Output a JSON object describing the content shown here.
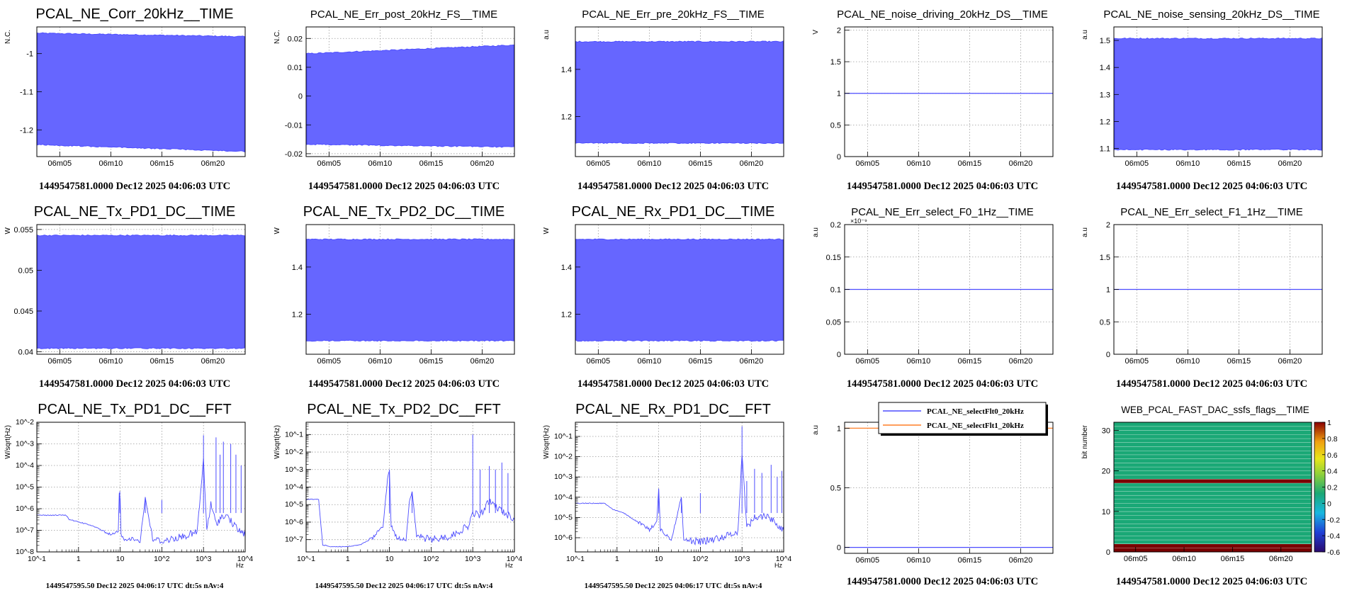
{
  "colors": {
    "trace": "#4d4dff",
    "fill": "#6666ff",
    "orange": "#ff7f27",
    "frame": "#000000",
    "grid": "#9a9a9a"
  },
  "time_ticks": [
    "06m05",
    "06m10",
    "06m15",
    "06m20"
  ],
  "freq_ticks": [
    "10^-1",
    "1",
    "10",
    "10^2",
    "10^3",
    "10^4"
  ],
  "freq_unit": "Hz",
  "stamp_time": "1449547581.0000 Dec12 2025 04:06:03 UTC",
  "stamp_fft": "1449547595.50 Dec12 2025 04:06:17 UTC dt:5s nAv:4",
  "chart_data": [
    {
      "type": "area",
      "title": "PCAL_NE_Corr_20kHz__TIME",
      "ylabel": "N.C.",
      "ylim": [
        -1.27,
        -0.93
      ],
      "yticks": [
        "-1",
        "-1.1",
        "-1.2"
      ],
      "yvals": [
        -1,
        -1.1,
        -1.2
      ],
      "band": {
        "upper": [
          -0.948,
          -0.957
        ],
        "lower": [
          -1.237,
          -1.255
        ]
      }
    },
    {
      "type": "area",
      "title": "PCAL_NE_Err_post_20kHz_FS__TIME",
      "ylabel": "N.C.",
      "ylim": [
        -0.021,
        0.024
      ],
      "yticks": [
        "0.02",
        "0.01",
        "0",
        "-0.01",
        "-0.02"
      ],
      "yvals": [
        0.02,
        0.01,
        0,
        -0.01,
        -0.02
      ],
      "band": {
        "upper": [
          0.0145,
          0.0175
        ],
        "lower": [
          -0.0165,
          -0.0175
        ]
      }
    },
    {
      "type": "area",
      "title": "PCAL_NE_Err_pre_20kHz_FS__TIME",
      "ylabel": "a.u",
      "ylim": [
        1.03,
        1.58
      ],
      "yticks": [
        "1.4",
        "1.2"
      ],
      "yvals": [
        1.4,
        1.2
      ],
      "band": {
        "upper": [
          1.515,
          1.515
        ],
        "lower": [
          1.09,
          1.09
        ]
      }
    },
    {
      "type": "line",
      "title": "PCAL_NE_noise_driving_20kHz_DS__TIME",
      "ylabel": "V",
      "ylim": [
        0,
        2.05
      ],
      "yticks": [
        "2",
        "1.5",
        "1",
        "0.5",
        "0"
      ],
      "yvals": [
        2,
        1.5,
        1,
        0.5,
        0
      ],
      "series": [
        {
          "values": [
            1,
            1
          ],
          "color": "#4d4dff"
        }
      ]
    },
    {
      "type": "area",
      "title": "PCAL_NE_noise_sensing_20kHz_DS__TIME",
      "ylabel": "a.u",
      "ylim": [
        1.07,
        1.55
      ],
      "yticks": [
        "1.5",
        "1.4",
        "1.3",
        "1.2",
        "1.1"
      ],
      "yvals": [
        1.5,
        1.4,
        1.3,
        1.2,
        1.1
      ],
      "band": {
        "upper": [
          1.505,
          1.505
        ],
        "lower": [
          1.098,
          1.098
        ]
      }
    },
    {
      "type": "area",
      "title": "PCAL_NE_Tx_PD1_DC__TIME",
      "ylabel": "W",
      "ylim": [
        0.0397,
        0.0556
      ],
      "yticks": [
        "0.055",
        "0.05",
        "0.045",
        "0.04"
      ],
      "yvals": [
        0.055,
        0.05,
        0.045,
        0.04
      ],
      "band": {
        "upper": [
          0.0542,
          0.0542
        ],
        "lower": [
          0.0405,
          0.0405
        ]
      }
    },
    {
      "type": "area",
      "title": "PCAL_NE_Tx_PD2_DC__TIME",
      "ylabel": "W",
      "ylim": [
        1.03,
        1.58
      ],
      "yticks": [
        "1.4",
        "1.2"
      ],
      "yvals": [
        1.4,
        1.2
      ],
      "band": {
        "upper": [
          1.515,
          1.515
        ],
        "lower": [
          1.09,
          1.09
        ]
      }
    },
    {
      "type": "area",
      "title": "PCAL_NE_Rx_PD1_DC__TIME",
      "ylabel": "W",
      "ylim": [
        1.03,
        1.58
      ],
      "yticks": [
        "1.4",
        "1.2"
      ],
      "yvals": [
        1.4,
        1.2
      ],
      "band": {
        "upper": [
          1.515,
          1.515
        ],
        "lower": [
          1.09,
          1.09
        ]
      }
    },
    {
      "type": "line",
      "title": "PCAL_NE_Err_select_F0_1Hz__TIME",
      "ylabel": "a.u",
      "ylim": [
        0,
        0.2
      ],
      "yticks": [
        "0.2",
        "0.15",
        "0.1",
        "0.05",
        "0"
      ],
      "yvals": [
        0.2,
        0.15,
        0.1,
        0.05,
        0
      ],
      "exponent": "×10⁻⁹",
      "series": [
        {
          "values": [
            0.1,
            0.1
          ],
          "color": "#4d4dff"
        }
      ]
    },
    {
      "type": "line",
      "title": "PCAL_NE_Err_select_F1_1Hz__TIME",
      "ylabel": "a.u",
      "ylim": [
        0,
        2
      ],
      "yticks": [
        "2",
        "1.5",
        "1",
        "0.5",
        "0"
      ],
      "yvals": [
        2,
        1.5,
        1,
        0.5,
        0
      ],
      "series": [
        {
          "values": [
            1,
            1
          ],
          "color": "#4d4dff"
        }
      ]
    },
    {
      "type": "spectrum",
      "title": "PCAL_NE_Tx_PD1_DC__FFT",
      "ylabel": "W/sqrt(Hz)",
      "ylim_log": [
        -8,
        -2
      ],
      "yticks": [
        "10^-2",
        "10^-3",
        "10^-4",
        "10^-5",
        "10^-6",
        "10^-7",
        "10^-8"
      ],
      "ydecades": [
        -2,
        -3,
        -4,
        -5,
        -6,
        -7,
        -8
      ],
      "x": [
        0.1,
        0.5,
        0.6,
        1.5,
        3,
        5,
        7,
        9,
        9.5,
        10,
        10.5,
        12,
        20,
        30,
        40,
        60,
        100,
        300,
        700,
        1000,
        1200,
        1500,
        2000,
        3000,
        4000,
        5000,
        7000,
        10000
      ],
      "y": [
        -6.3,
        -6.3,
        -6.5,
        -6.7,
        -6.9,
        -7.2,
        -7.2,
        -7.0,
        -5.2,
        -5.6,
        -7.2,
        -7.4,
        -7.4,
        -7.5,
        -5.5,
        -7.4,
        -7.5,
        -7.3,
        -7.1,
        -3.8,
        -7.0,
        -5.8,
        -6.7,
        -6.3,
        -6.4,
        -6.7,
        -7.0,
        -7.2
      ],
      "peaks": [
        [
          9.8,
          -5.2
        ],
        [
          40,
          -5.5
        ],
        [
          100,
          -5.6
        ],
        [
          1000,
          -2.6
        ],
        [
          2000,
          -2.7
        ],
        [
          2500,
          -3.5
        ],
        [
          3000,
          -2.9
        ],
        [
          4500,
          -3.0
        ],
        [
          6000,
          -3.5
        ],
        [
          8000,
          -4.0
        ]
      ]
    },
    {
      "type": "spectrum",
      "title": "PCAL_NE_Tx_PD2_DC__FFT",
      "ylabel": "W/sqrt(Hz)",
      "ylim_log": [
        -7.7,
        -0.3
      ],
      "yticks": [
        "10^-1",
        "10^-2",
        "10^-3",
        "10^-4",
        "10^-5",
        "10^-6",
        "10^-7"
      ],
      "ydecades": [
        -1,
        -2,
        -3,
        -4,
        -5,
        -6,
        -7
      ],
      "x": [
        0.1,
        0.2,
        0.25,
        0.4,
        1,
        2,
        4,
        7,
        9,
        10,
        11,
        15,
        25,
        30,
        35,
        45,
        100,
        300,
        800,
        1000,
        1500,
        2500,
        4000,
        6000,
        10000
      ],
      "y": [
        -4.7,
        -4.7,
        -7.3,
        -7.4,
        -7.4,
        -7.3,
        -6.9,
        -6.2,
        -3.6,
        -3.0,
        -6.2,
        -6.9,
        -7.0,
        -4.8,
        -4.3,
        -6.8,
        -7.0,
        -6.8,
        -6.2,
        -5.5,
        -5.6,
        -4.8,
        -5.2,
        -5.5,
        -5.8
      ],
      "peaks": [
        [
          10,
          -3.0
        ],
        [
          35,
          -4.3
        ],
        [
          1000,
          -1.0
        ],
        [
          1500,
          -3.0
        ],
        [
          2500,
          -2.8
        ],
        [
          3500,
          -3.0
        ],
        [
          5000,
          -2.6
        ],
        [
          7000,
          -3.2
        ]
      ]
    },
    {
      "type": "spectrum",
      "title": "PCAL_NE_Rx_PD1_DC__FFT",
      "ylabel": "W/sqrt(Hz)",
      "ylim_log": [
        -6.7,
        -0.3
      ],
      "yticks": [
        "10^-1",
        "10^-2",
        "10^-3",
        "10^-4",
        "10^-5",
        "10^-6"
      ],
      "ydecades": [
        -1,
        -2,
        -3,
        -4,
        -5,
        -6
      ],
      "x": [
        0.1,
        0.5,
        0.8,
        1.5,
        3,
        6,
        9,
        10,
        11,
        20,
        35,
        40,
        100,
        300,
        800,
        1000,
        1300,
        2000,
        4000,
        10000
      ],
      "y": [
        -4.3,
        -4.3,
        -4.6,
        -4.8,
        -5.2,
        -5.6,
        -5.2,
        -3.6,
        -5.6,
        -6.1,
        -4.0,
        -6.1,
        -6.2,
        -6.0,
        -5.7,
        -1.8,
        -5.5,
        -5.0,
        -4.9,
        -5.6
      ],
      "peaks": [
        [
          10,
          -3.6
        ],
        [
          35,
          -4.0
        ],
        [
          100,
          -3.8
        ],
        [
          1000,
          -0.5
        ],
        [
          1300,
          -3.2
        ],
        [
          2000,
          -2.6
        ],
        [
          3000,
          -2.8
        ],
        [
          5000,
          -2.4
        ],
        [
          7000,
          -3.0
        ],
        [
          9000,
          -2.7
        ]
      ]
    },
    {
      "type": "line",
      "title": "",
      "ylabel": "a.u",
      "ylim": [
        -0.05,
        1.05
      ],
      "yticks": [
        "1",
        "0.5",
        "0"
      ],
      "yvals": [
        1,
        0.5,
        0
      ],
      "legend_position": "top-right",
      "series": [
        {
          "name": "PCAL_NE_selectFlt0_20kHz",
          "values": [
            0,
            0
          ],
          "color": "#4d4dff"
        },
        {
          "name": "PCAL_NE_selectFlt1_20kHz",
          "values": [
            1,
            1
          ],
          "color": "#ff7f27"
        }
      ]
    },
    {
      "type": "heatmap",
      "title": "WEB_PCAL_FAST_DAC_ssfs_flags__TIME",
      "ylabel": "bit number",
      "ylim": [
        0,
        32
      ],
      "yticks": [
        "30",
        "20",
        "10",
        "0"
      ],
      "yvals": [
        30,
        20,
        10,
        0
      ],
      "zlim": [
        -0.6,
        1
      ],
      "zticks": [
        "1",
        "0.8",
        "0.6",
        "0.4",
        "0.2",
        "0",
        "-0.2",
        "-0.4",
        "-0.6"
      ],
      "zvals": [
        1,
        0.8,
        0.6,
        0.4,
        0.2,
        0,
        -0.2,
        -0.4,
        -0.6
      ],
      "rows": [
        {
          "bit": 0,
          "value": 1
        },
        {
          "bit": 1,
          "value": 1
        },
        {
          "bit": 17,
          "value": 1
        }
      ],
      "default_value": 0
    }
  ]
}
